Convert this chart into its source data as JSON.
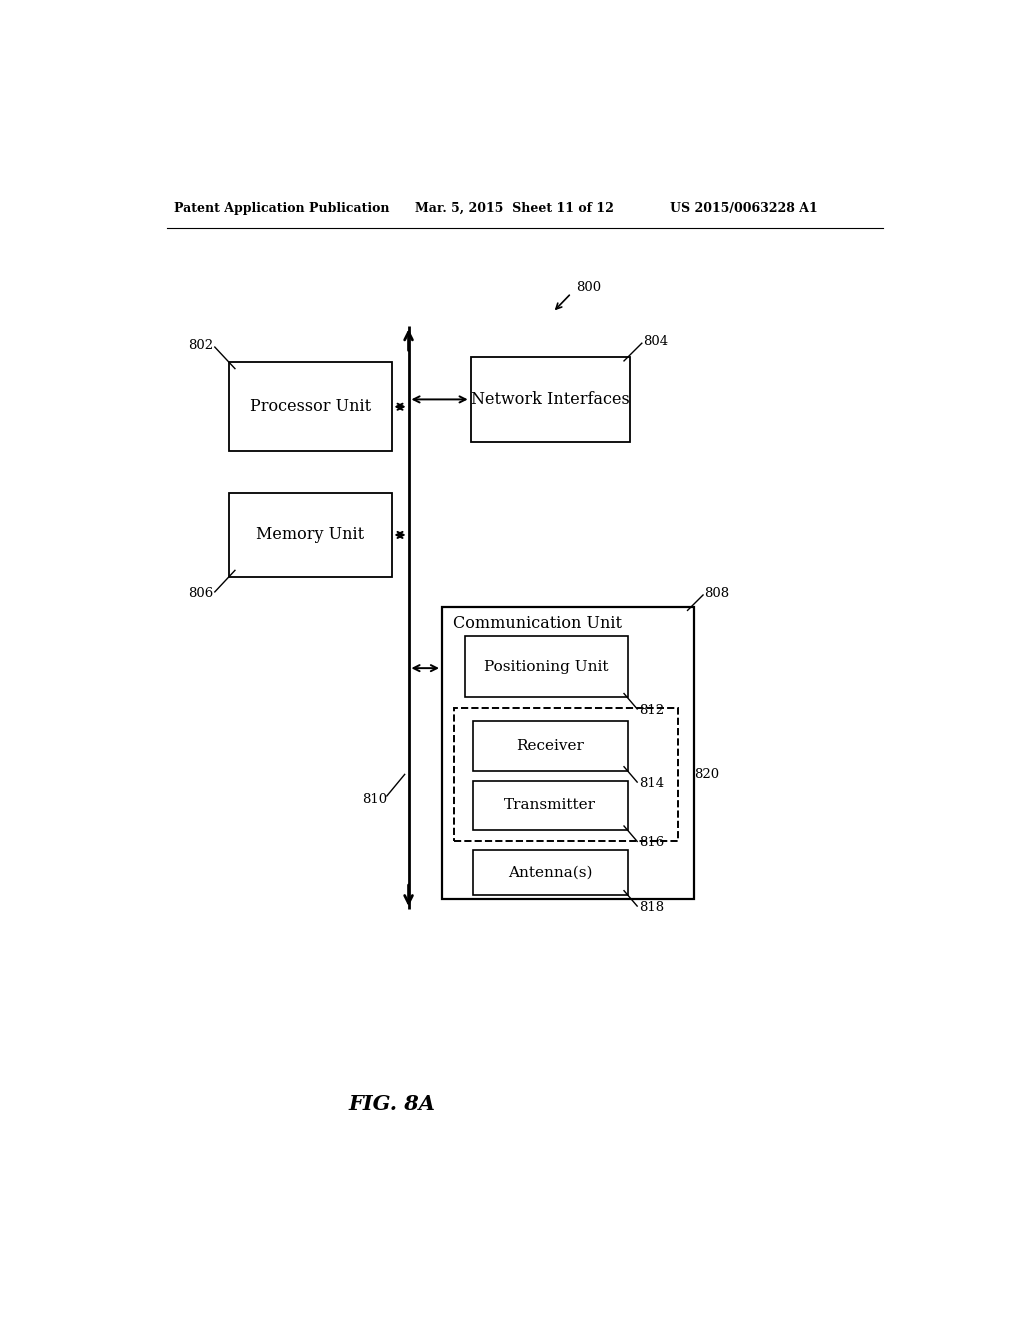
{
  "header_left": "Patent Application Publication",
  "header_mid": "Mar. 5, 2015  Sheet 11 of 12",
  "header_right": "US 2015/0063228 A1",
  "fig_label": "FIG. 8A",
  "bg_color": "#ffffff",
  "ref_800": "800",
  "ref_802": "802",
  "ref_804": "804",
  "ref_806": "806",
  "ref_808": "808",
  "ref_810": "810",
  "ref_812": "812",
  "ref_814": "814",
  "ref_816": "816",
  "ref_818": "818",
  "ref_820": "820",
  "label_processor": "Processor Unit",
  "label_memory": "Memory Unit",
  "label_network": "Network Interfaces",
  "label_comm": "Communication Unit",
  "label_positioning": "Positioning Unit",
  "label_receiver": "Receiver",
  "label_transmitter": "Transmitter",
  "label_antenna": "Antenna(s)"
}
